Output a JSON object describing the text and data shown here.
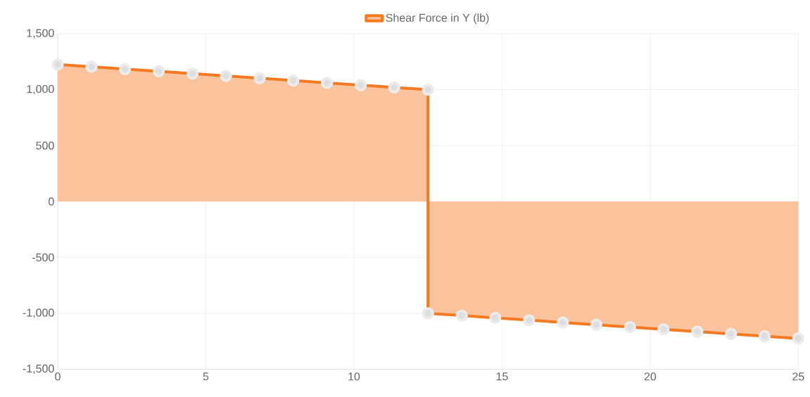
{
  "chart_data": {
    "type": "area",
    "legend": "top",
    "grid": true,
    "marker": "circle",
    "xlim": [
      0,
      25
    ],
    "xticks": [
      0,
      5,
      10,
      15,
      20,
      25
    ],
    "ylim": [
      -1500,
      1500
    ],
    "yticks": [
      {
        "value": -1500,
        "label": "-1,500"
      },
      {
        "value": -1000,
        "label": "-1,000"
      },
      {
        "value": -500,
        "label": "-500"
      },
      {
        "value": 0,
        "label": "0"
      },
      {
        "value": 500,
        "label": "500"
      },
      {
        "value": 1000,
        "label": "1,000"
      },
      {
        "value": 1500,
        "label": "1,500"
      }
    ],
    "series": [
      {
        "name": "Shear Force in Y (lb)",
        "color": "#f47920",
        "x": [
          0,
          1.14,
          2.27,
          3.41,
          4.55,
          5.68,
          6.82,
          7.95,
          9.09,
          10.23,
          11.36,
          12.5,
          12.5,
          13.64,
          14.77,
          15.91,
          17.05,
          18.18,
          19.32,
          20.45,
          21.59,
          22.73,
          23.86,
          25
        ],
        "values": [
          1225,
          1205,
          1184,
          1164,
          1143,
          1123,
          1102,
          1082,
          1061,
          1041,
          1020,
          1000,
          -1000,
          -1020,
          -1041,
          -1061,
          -1082,
          -1102,
          -1123,
          -1143,
          -1164,
          -1184,
          -1205,
          -1225
        ]
      }
    ]
  }
}
